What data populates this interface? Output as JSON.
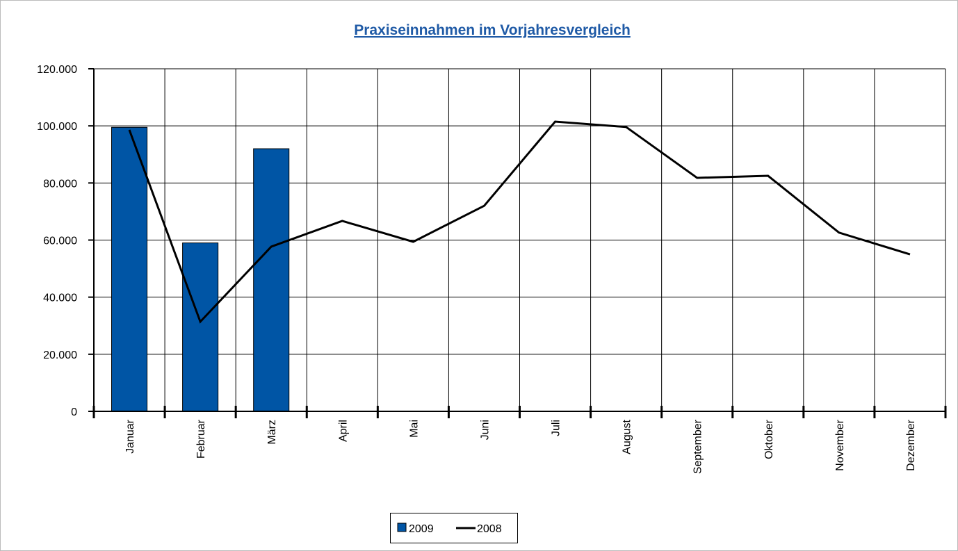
{
  "chart_data": {
    "type": "bar",
    "title": "Praxiseinnahmen im Vorjahresvergleich",
    "categories": [
      "Januar",
      "Februar",
      "März",
      "April",
      "Mai",
      "Juni",
      "Juli",
      "August",
      "September",
      "Oktober",
      "November",
      "Dezember"
    ],
    "series": [
      {
        "name": "2009",
        "type": "bar",
        "color": "#0055a5",
        "values": [
          99500,
          59000,
          92000,
          null,
          null,
          null,
          null,
          null,
          null,
          null,
          null,
          null
        ]
      },
      {
        "name": "2008",
        "type": "line",
        "color": "#000000",
        "values": [
          98600,
          31400,
          57700,
          66700,
          59400,
          72000,
          101500,
          99600,
          81800,
          82500,
          62600,
          55000
        ]
      }
    ],
    "ylim": [
      0,
      120000
    ],
    "yticks": [
      0,
      {
        "value": 20000,
        "label": "20.000"
      },
      {
        "value": 40000,
        "label": "40.000"
      },
      {
        "value": 60000,
        "label": "60.000"
      },
      {
        "value": 80000,
        "label": "80.000"
      },
      {
        "value": 100000,
        "label": "100.000"
      },
      {
        "value": 120000,
        "label": "120.000"
      }
    ],
    "grid": true,
    "legend": "bottom"
  }
}
